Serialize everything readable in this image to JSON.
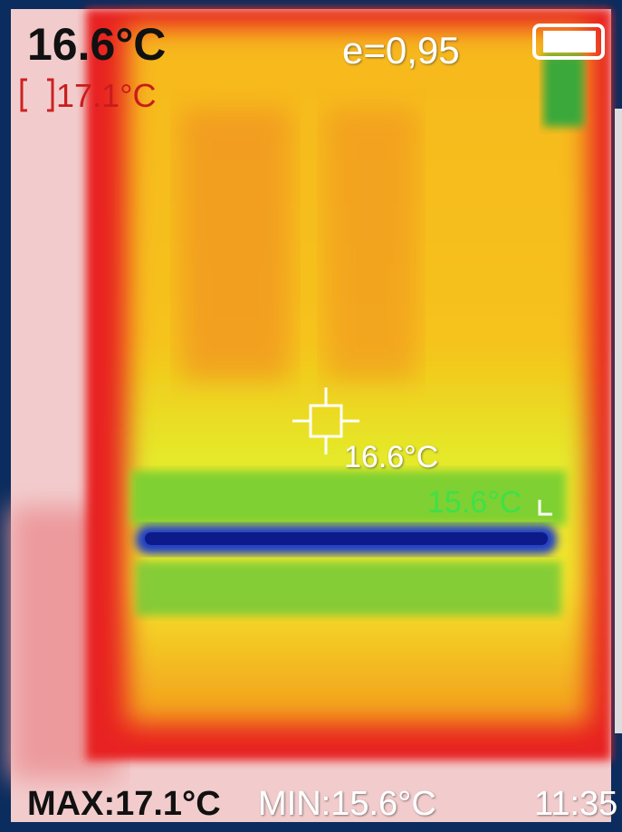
{
  "readout": {
    "center_temp": "16.6°C",
    "spot_max_temp": "17.1°C",
    "emissivity": "e=0,95"
  },
  "markers": {
    "center_label": "16.6°C",
    "min_label": "15.6°C"
  },
  "status_bar": {
    "max": "MAX:17.1°C",
    "min": "MIN:15.6°C",
    "time": "11:35"
  }
}
